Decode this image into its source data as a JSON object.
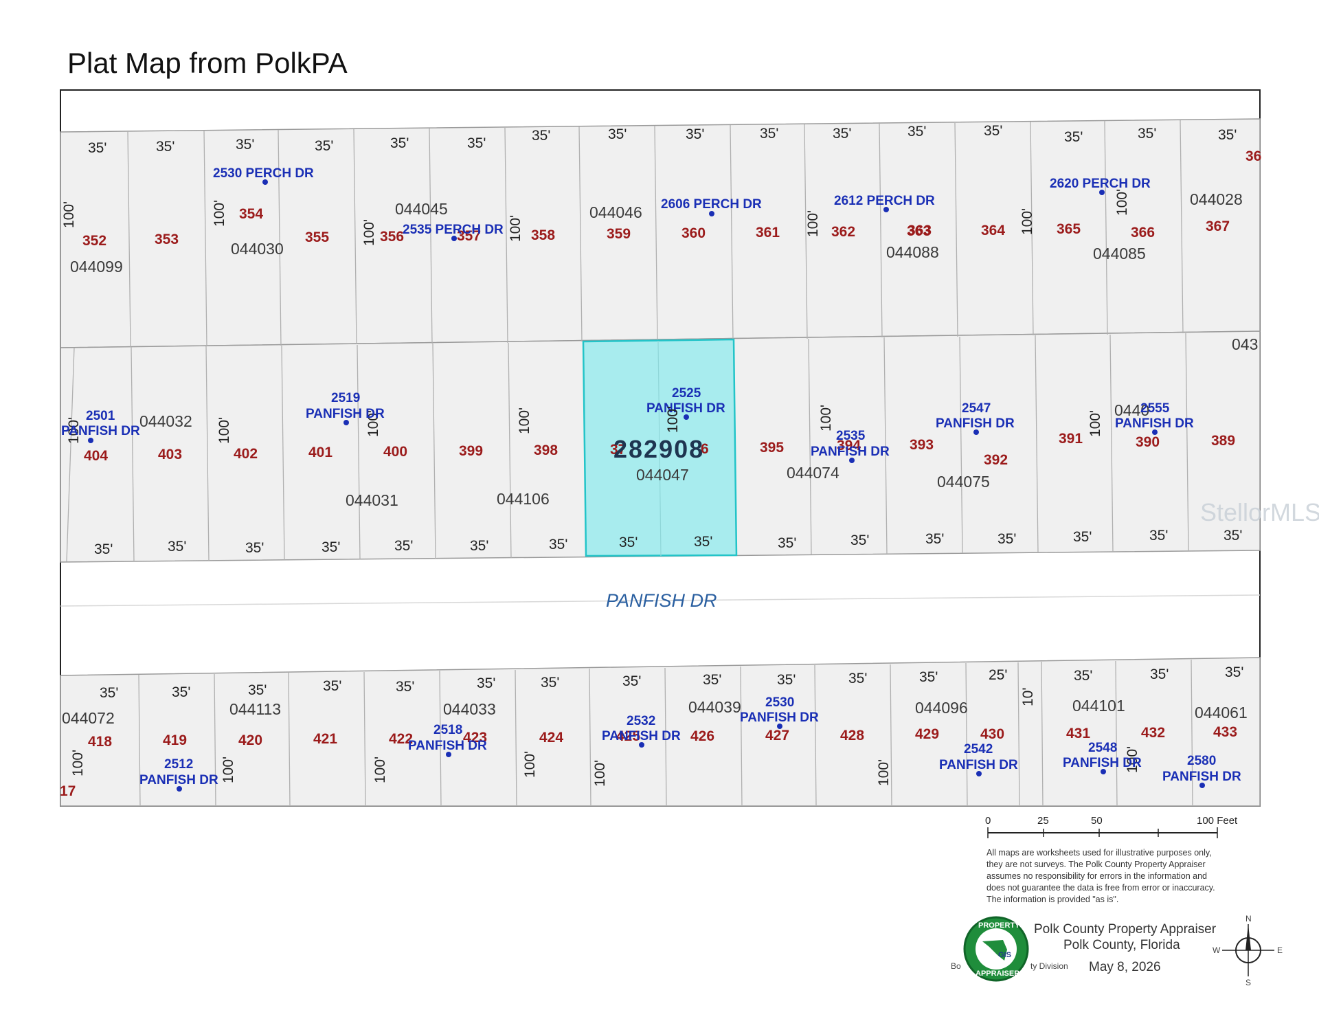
{
  "title": "Plat Map from PolkPA",
  "highlighted_parcel": {
    "number": "282908",
    "parcel_id": "044047",
    "address_number": "2525",
    "address_street": "PANFISH DR"
  },
  "street_label": "PANFISH DR",
  "watermark": "StellorMLS",
  "dimensions": {
    "d35": "35'",
    "d25": "25'",
    "d10": "10'",
    "d100": "100'"
  },
  "top_lots": [
    "352",
    "353",
    "354",
    "355",
    "356",
    "357",
    "358",
    "359",
    "360",
    "361",
    "362",
    "363",
    "364",
    "365",
    "366",
    "367"
  ],
  "top_parcels": [
    "044099",
    "044030",
    "044045",
    "044046",
    "044088",
    "044085",
    "044028"
  ],
  "top_addresses": [
    {
      "text": "2530 PERCH DR"
    },
    {
      "text": "2535 PERCH DR"
    },
    {
      "text": "2606 PERCH DR"
    },
    {
      "text": "2612 PERCH DR"
    },
    {
      "text": "2620 PERCH DR"
    }
  ],
  "mid_lots": [
    "404",
    "403",
    "402",
    "401",
    "400",
    "399",
    "398",
    "395",
    "394",
    "393",
    "392",
    "391",
    "390",
    "389"
  ],
  "mid_parcels": [
    "044032",
    "044031",
    "044106",
    "044074",
    "044075",
    "0440"
  ],
  "mid_addresses": [
    {
      "num": "2501",
      "street": "PANFISH DR"
    },
    {
      "num": "2519",
      "street": "PANFISH DR"
    },
    {
      "num": "2535",
      "street": "PANFISH DR"
    },
    {
      "num": "2547",
      "street": "PANFISH DR"
    },
    {
      "num": "2555",
      "street": "PANFISH DR"
    }
  ],
  "bottom_lots": [
    "418",
    "419",
    "420",
    "421",
    "422",
    "423",
    "424",
    "425",
    "426",
    "427",
    "428",
    "429",
    "430",
    "431",
    "432",
    "433"
  ],
  "bottom_parcels": [
    "044072",
    "044113",
    "044033",
    "044039",
    "044096",
    "044101",
    "044061"
  ],
  "bottom_addresses": [
    {
      "num": "2512",
      "street": "PANFISH DR"
    },
    {
      "num": "2518",
      "street": "PANFISH DR"
    },
    {
      "num": "2532",
      "street": "PANFISH DR"
    },
    {
      "num": "2530",
      "street": "PANFISH DR"
    },
    {
      "num": "2542",
      "street": "PANFISH DR"
    },
    {
      "num": "2548",
      "street": "PANFISH DR"
    },
    {
      "num": "2580",
      "street": "PANFISH DR"
    }
  ],
  "edge_fragments": {
    "top_right": "36",
    "mid_right": "043",
    "bottom_left": "17",
    "mid_partial": "37",
    "mid_partial2": "6"
  },
  "scale_bar": {
    "labels": [
      "0",
      "25",
      "50",
      "100 Feet"
    ]
  },
  "disclaimer": [
    "All maps are worksheets used for illustrative purposes only,",
    "they are not surveys. The Polk County Property Appraiser",
    "assumes no responsibility for errors in the information and",
    "does not guarantee the data is free from error or inaccuracy.",
    "The information is provided \"as is\"."
  ],
  "agency": {
    "line1": "Polk County Property Appraiser",
    "line2": "Polk County, Florida",
    "date": "May 8, 2026",
    "left_frag": "Bo",
    "division_frag": "ty Division"
  },
  "logo": {
    "top": "PROPERTY",
    "bottom": "APPRAISER",
    "center": "GIS"
  },
  "compass": {
    "n": "N",
    "s": "S",
    "e": "E",
    "w": "W"
  },
  "colors": {
    "lot_number": "#9b1b1b",
    "address": "#1a2fb5",
    "highlight": "#a8ecee",
    "highlight_border": "#23c4c8",
    "parcel_fill": "#f0f0f0"
  }
}
